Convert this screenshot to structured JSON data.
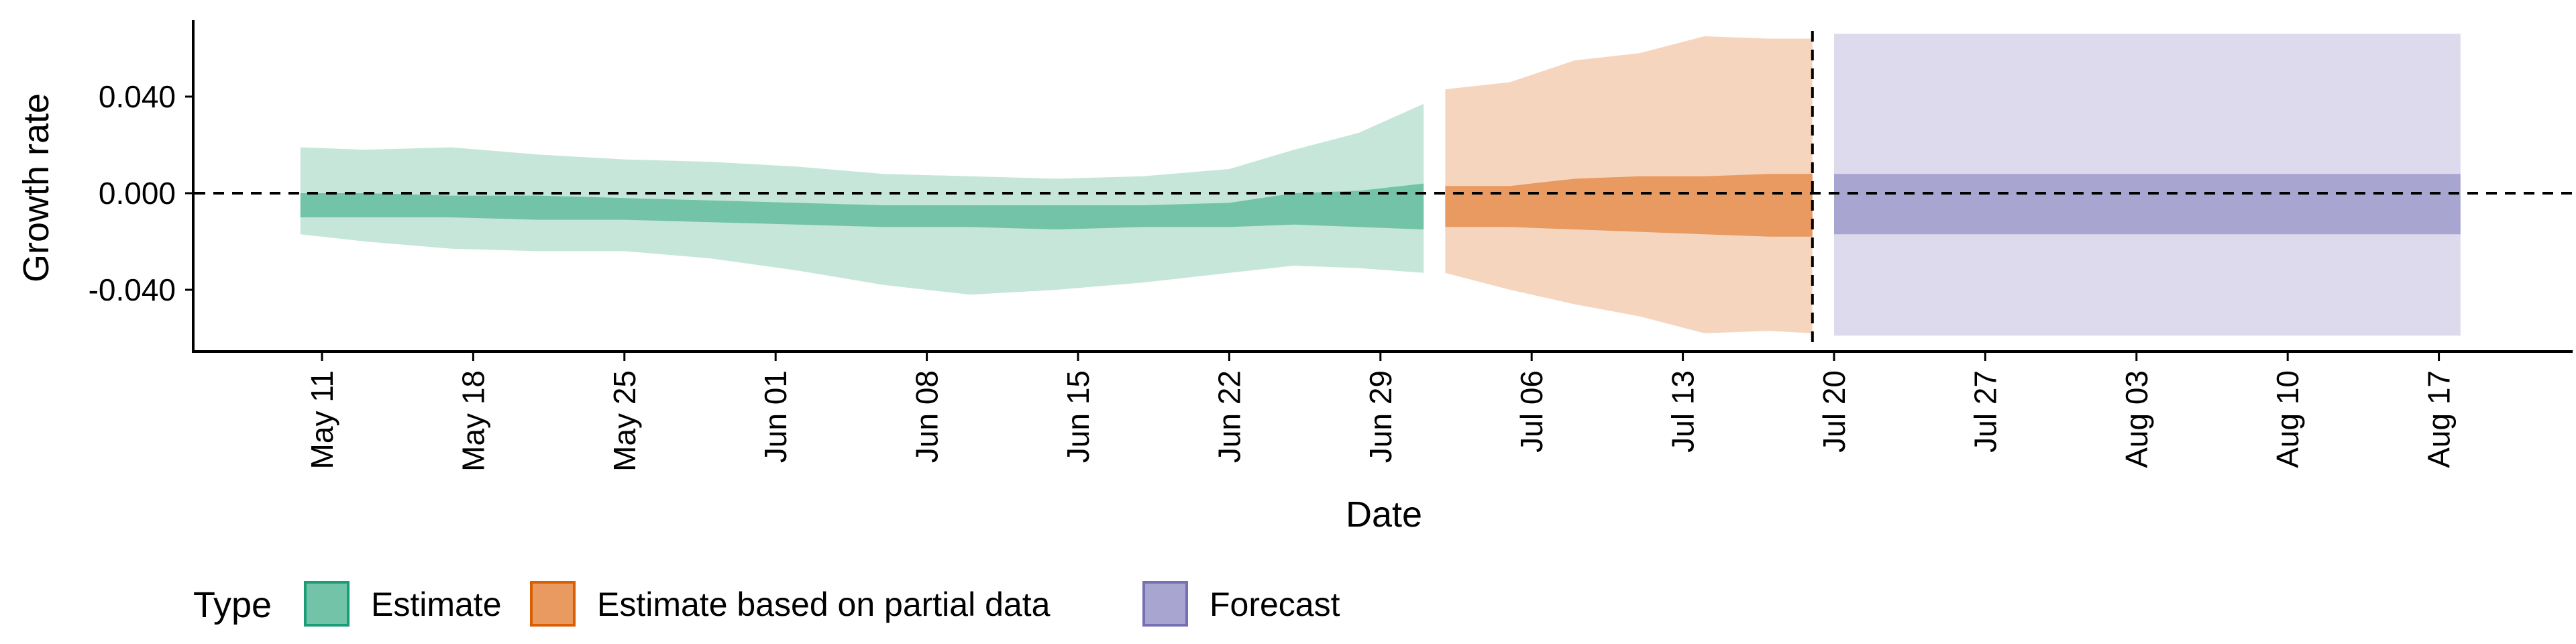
{
  "chart_data": {
    "type": "area",
    "title": "",
    "xlabel": "Date",
    "ylabel": "Growth rate",
    "x_range": [
      "2020-05-04",
      "2020-08-24"
    ],
    "ylim": [
      -0.066,
      0.071
    ],
    "y_ticks": [
      {
        "value": 0.04,
        "label": "0.040"
      },
      {
        "value": 0.0,
        "label": "0.000"
      },
      {
        "value": -0.04,
        "label": "-0.040"
      }
    ],
    "x_ticks": [
      {
        "date": "2020-05-11",
        "label": "May 11"
      },
      {
        "date": "2020-05-18",
        "label": "May 18"
      },
      {
        "date": "2020-05-25",
        "label": "May 25"
      },
      {
        "date": "2020-06-01",
        "label": "Jun 01"
      },
      {
        "date": "2020-06-08",
        "label": "Jun 08"
      },
      {
        "date": "2020-06-15",
        "label": "Jun 15"
      },
      {
        "date": "2020-06-22",
        "label": "Jun 22"
      },
      {
        "date": "2020-06-29",
        "label": "Jun 29"
      },
      {
        "date": "2020-07-06",
        "label": "Jul 06"
      },
      {
        "date": "2020-07-13",
        "label": "Jul 13"
      },
      {
        "date": "2020-07-20",
        "label": "Jul 20"
      },
      {
        "date": "2020-07-27",
        "label": "Jul 27"
      },
      {
        "date": "2020-08-03",
        "label": "Aug 03"
      },
      {
        "date": "2020-08-10",
        "label": "Aug 10"
      },
      {
        "date": "2020-08-17",
        "label": "Aug 17"
      }
    ],
    "reference_lines": {
      "horizontal_y": 0.0,
      "vertical_date": "2020-07-19"
    },
    "legend": {
      "title": "Type",
      "position": "bottom-left",
      "entries": [
        {
          "name": "Estimate",
          "fill": "#72C3A7",
          "stroke": "#1B9E77"
        },
        {
          "name": "Estimate based on partial data",
          "fill": "#E89A60",
          "stroke": "#D95F02"
        },
        {
          "name": "Forecast",
          "fill": "#A9A5D1",
          "stroke": "#7570B3"
        }
      ]
    },
    "series": [
      {
        "type_index": 0,
        "color_outer": "#C6E6DA",
        "color_inner": "#72C3A7",
        "points": [
          {
            "date": "2020-05-10",
            "lo90": -0.017,
            "lo50": -0.01,
            "hi50": 0.0,
            "hi90": 0.019
          },
          {
            "date": "2020-05-13",
            "lo90": -0.02,
            "lo50": -0.01,
            "hi50": 0.0,
            "hi90": 0.018
          },
          {
            "date": "2020-05-17",
            "lo90": -0.023,
            "lo50": -0.01,
            "hi50": -0.001,
            "hi90": 0.019
          },
          {
            "date": "2020-05-21",
            "lo90": -0.024,
            "lo50": -0.011,
            "hi50": -0.001,
            "hi90": 0.016
          },
          {
            "date": "2020-05-25",
            "lo90": -0.024,
            "lo50": -0.011,
            "hi50": -0.002,
            "hi90": 0.014
          },
          {
            "date": "2020-05-29",
            "lo90": -0.027,
            "lo50": -0.012,
            "hi50": -0.003,
            "hi90": 0.013
          },
          {
            "date": "2020-06-02",
            "lo90": -0.032,
            "lo50": -0.013,
            "hi50": -0.004,
            "hi90": 0.011
          },
          {
            "date": "2020-06-06",
            "lo90": -0.038,
            "lo50": -0.014,
            "hi50": -0.005,
            "hi90": 0.008
          },
          {
            "date": "2020-06-10",
            "lo90": -0.042,
            "lo50": -0.014,
            "hi50": -0.005,
            "hi90": 0.007
          },
          {
            "date": "2020-06-14",
            "lo90": -0.04,
            "lo50": -0.015,
            "hi50": -0.005,
            "hi90": 0.006
          },
          {
            "date": "2020-06-18",
            "lo90": -0.037,
            "lo50": -0.014,
            "hi50": -0.005,
            "hi90": 0.007
          },
          {
            "date": "2020-06-22",
            "lo90": -0.033,
            "lo50": -0.014,
            "hi50": -0.004,
            "hi90": 0.01
          },
          {
            "date": "2020-06-25",
            "lo90": -0.03,
            "lo50": -0.013,
            "hi50": 0.0,
            "hi90": 0.018
          },
          {
            "date": "2020-06-28",
            "lo90": -0.031,
            "lo50": -0.014,
            "hi50": 0.001,
            "hi90": 0.025
          },
          {
            "date": "2020-07-01",
            "lo90": -0.033,
            "lo50": -0.015,
            "hi50": 0.004,
            "hi90": 0.037
          }
        ]
      },
      {
        "type_index": 1,
        "color_outer": "#F6D5BE",
        "color_inner": "#E89A60",
        "points": [
          {
            "date": "2020-07-02",
            "lo90": -0.033,
            "lo50": -0.014,
            "hi50": 0.003,
            "hi90": 0.043
          },
          {
            "date": "2020-07-05",
            "lo90": -0.04,
            "lo50": -0.014,
            "hi50": 0.003,
            "hi90": 0.046
          },
          {
            "date": "2020-07-08",
            "lo90": -0.046,
            "lo50": -0.015,
            "hi50": 0.006,
            "hi90": 0.055
          },
          {
            "date": "2020-07-11",
            "lo90": -0.051,
            "lo50": -0.016,
            "hi50": 0.007,
            "hi90": 0.058
          },
          {
            "date": "2020-07-14",
            "lo90": -0.058,
            "lo50": -0.017,
            "hi50": 0.007,
            "hi90": 0.065
          },
          {
            "date": "2020-07-17",
            "lo90": -0.057,
            "lo50": -0.018,
            "hi50": 0.008,
            "hi90": 0.064
          },
          {
            "date": "2020-07-19",
            "lo90": -0.058,
            "lo50": -0.018,
            "hi50": 0.008,
            "hi90": 0.064
          }
        ]
      },
      {
        "type_index": 2,
        "color_outer": "#DCDAEC",
        "color_inner": "#A9A5D1",
        "points": [
          {
            "date": "2020-07-20",
            "lo90": -0.059,
            "lo50": -0.017,
            "hi50": 0.008,
            "hi90": 0.066
          },
          {
            "date": "2020-08-18",
            "lo90": -0.059,
            "lo50": -0.017,
            "hi50": 0.008,
            "hi90": 0.066
          }
        ]
      }
    ]
  }
}
